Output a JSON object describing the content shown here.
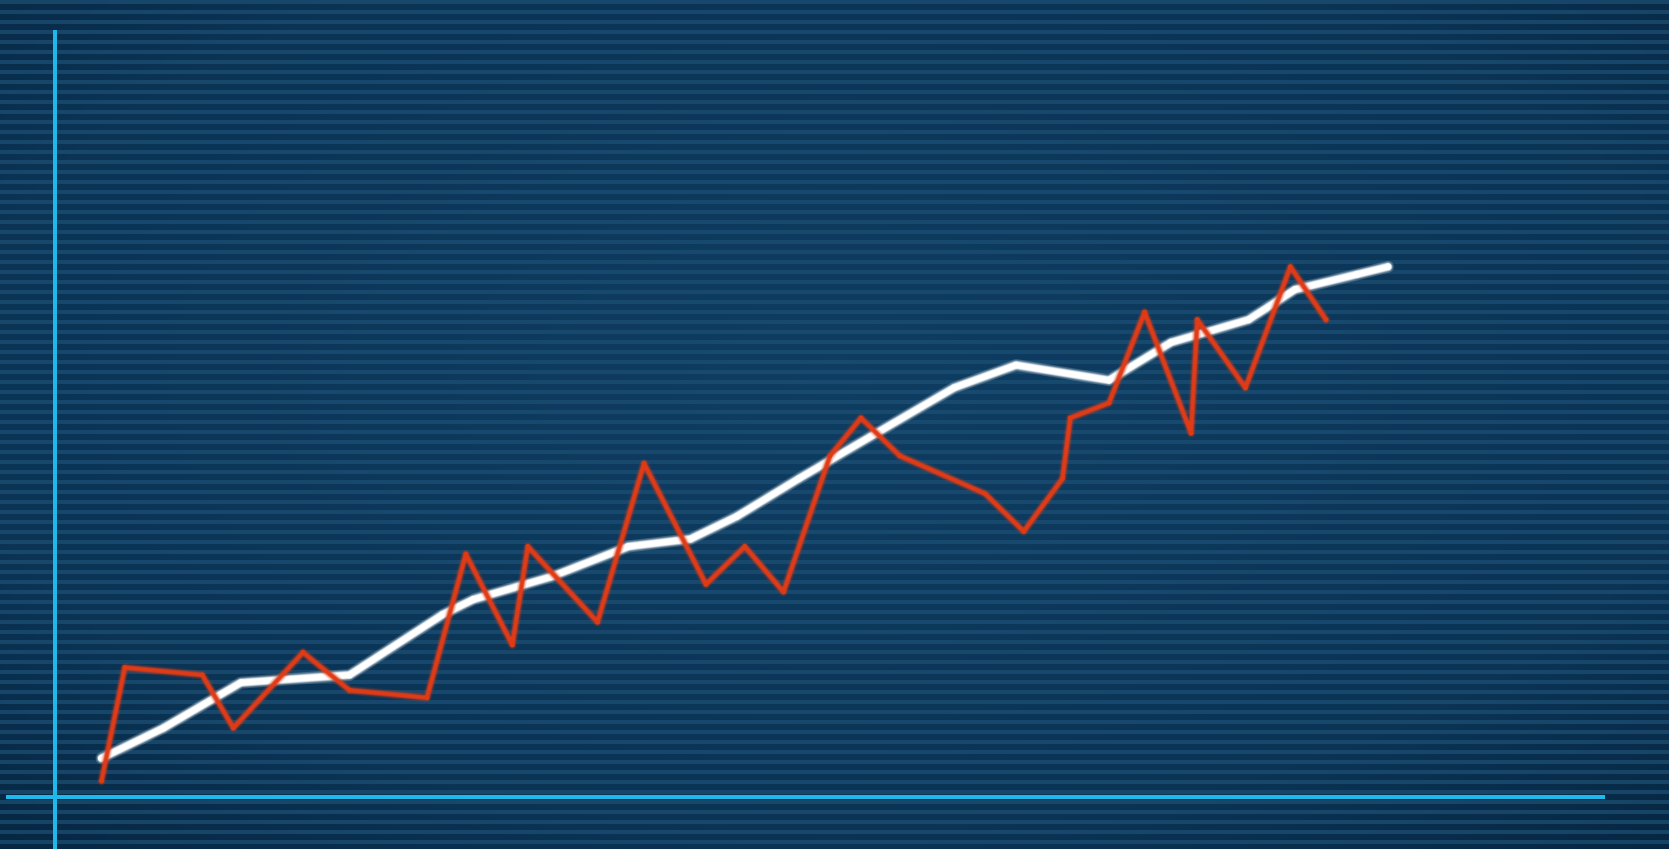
{
  "chart_data": {
    "type": "line",
    "title": "",
    "xlabel": "",
    "ylabel": "",
    "grid": "horizontal-scanlines",
    "legend": "none",
    "xlim": [
      0,
      100
    ],
    "ylim": [
      0,
      100
    ],
    "series": [
      {
        "color": "#ffffff",
        "points": [
          [
            3,
            5
          ],
          [
            7,
            9
          ],
          [
            12,
            15
          ],
          [
            19,
            16
          ],
          [
            25,
            24
          ],
          [
            27,
            26
          ],
          [
            32,
            29
          ],
          [
            37,
            33
          ],
          [
            41,
            34
          ],
          [
            44,
            37
          ],
          [
            48,
            42
          ],
          [
            53,
            48
          ],
          [
            58,
            54
          ],
          [
            62,
            57
          ],
          [
            68,
            55
          ],
          [
            72,
            60
          ],
          [
            77,
            63
          ],
          [
            80,
            67
          ],
          [
            84,
            69
          ],
          [
            86,
            70
          ]
        ]
      },
      {
        "color": "#e03a12",
        "points": [
          [
            3,
            2
          ],
          [
            4.5,
            17
          ],
          [
            9.5,
            16
          ],
          [
            11.5,
            9
          ],
          [
            16,
            19
          ],
          [
            19,
            14
          ],
          [
            24,
            13
          ],
          [
            26.5,
            32
          ],
          [
            29.5,
            20
          ],
          [
            30.5,
            33
          ],
          [
            35,
            23
          ],
          [
            38,
            44
          ],
          [
            42,
            28
          ],
          [
            44.5,
            33
          ],
          [
            47,
            27
          ],
          [
            50,
            45
          ],
          [
            52,
            50
          ],
          [
            54.5,
            45
          ],
          [
            60,
            40
          ],
          [
            62.5,
            35
          ],
          [
            65,
            42
          ],
          [
            65.5,
            50
          ],
          [
            68,
            52
          ],
          [
            70.3,
            64
          ],
          [
            73.3,
            48
          ],
          [
            73.7,
            63
          ],
          [
            76.8,
            54
          ],
          [
            79.7,
            70
          ],
          [
            82,
            63
          ]
        ]
      }
    ]
  }
}
